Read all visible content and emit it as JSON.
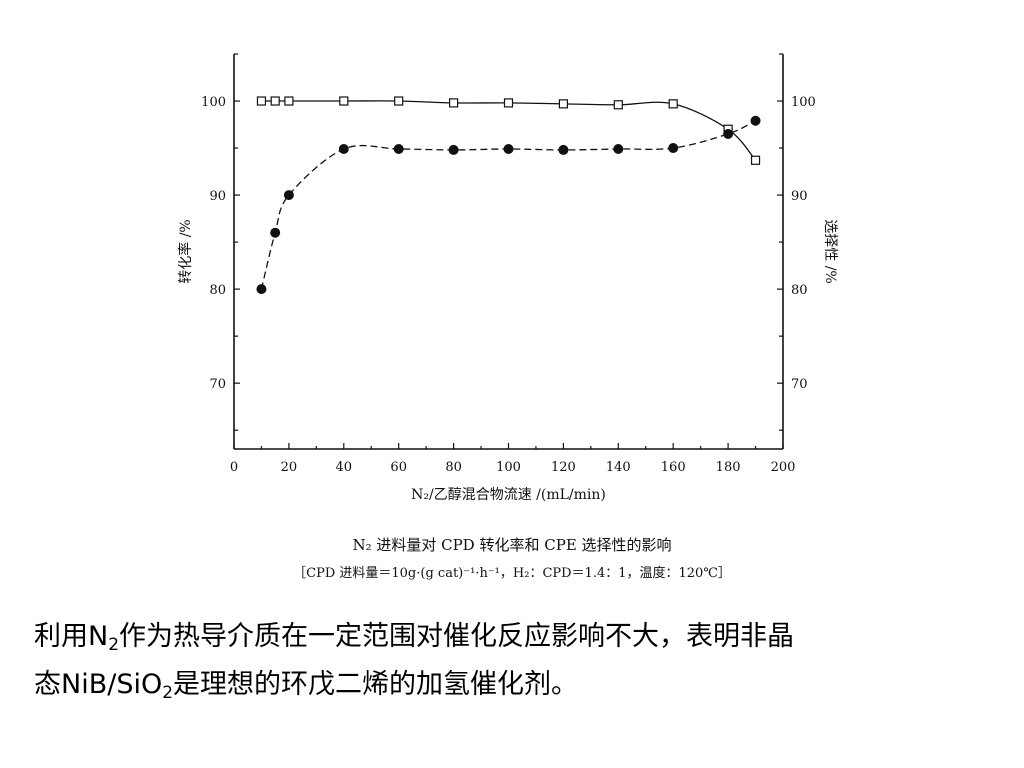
{
  "chart_data": {
    "type": "line",
    "xlabel": "N₂/乙醇混合物流速 /(mL/min)",
    "ylabel": "转化率 /%",
    "ylabel_right": "选择性 /%",
    "xlim": [
      0,
      200
    ],
    "ylim": [
      63,
      105
    ],
    "xticks": [
      0,
      20,
      40,
      60,
      80,
      100,
      120,
      140,
      160,
      180,
      200
    ],
    "yticks": [
      70,
      80,
      90,
      100
    ],
    "grid": false,
    "series": [
      {
        "marker": "open-square",
        "axis": "right",
        "x": [
          10,
          15,
          20,
          40,
          60,
          80,
          100,
          120,
          140,
          160,
          180,
          190
        ],
        "y": [
          100,
          100,
          100,
          100,
          100,
          99.8,
          99.8,
          99.7,
          99.6,
          99.7,
          97,
          93.7
        ]
      },
      {
        "marker": "filled-circle",
        "axis": "left",
        "x": [
          10,
          15,
          20,
          40,
          60,
          80,
          100,
          120,
          140,
          160,
          180,
          190
        ],
        "y": [
          80,
          86,
          90,
          94.9,
          94.9,
          94.8,
          94.9,
          94.8,
          94.9,
          95,
          96.5,
          97.9
        ]
      }
    ]
  },
  "caption": {
    "title": "N₂ 进料量对 CPD 转化率和 CPE 选择性的影响",
    "conditions": "［CPD 进料量＝10g·(g cat)⁻¹·h⁻¹，H₂：CPD＝1.4：1，温度：120℃］"
  },
  "text": {
    "line1_a": "利用N",
    "line1_sub": "2",
    "line1_b": "作为热导介质在一定范围对催化反应影响不大，表明非晶",
    "line2_a": "态NiB/SiO",
    "line2_sub": "2",
    "line2_b": "是理想的环戊二烯的加氢催化剂。"
  }
}
